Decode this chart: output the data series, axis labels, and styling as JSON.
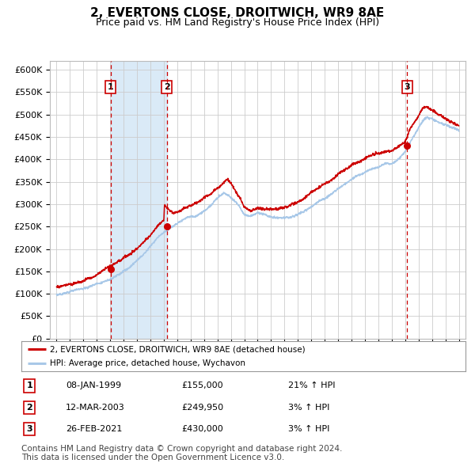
{
  "title": "2, EVERTONS CLOSE, DROITWICH, WR9 8AE",
  "subtitle": "Price paid vs. HM Land Registry's House Price Index (HPI)",
  "title_fontsize": 11,
  "subtitle_fontsize": 9,
  "ylim": [
    0,
    620000
  ],
  "yticks": [
    0,
    50000,
    100000,
    150000,
    200000,
    250000,
    300000,
    350000,
    400000,
    450000,
    500000,
    550000,
    600000
  ],
  "ytick_labels": [
    "£0",
    "£50K",
    "£100K",
    "£150K",
    "£200K",
    "£250K",
    "£300K",
    "£350K",
    "£400K",
    "£450K",
    "£500K",
    "£550K",
    "£600K"
  ],
  "xlim_start": 1994.5,
  "xlim_end": 2025.5,
  "xtick_years": [
    1995,
    1996,
    1997,
    1998,
    1999,
    2000,
    2001,
    2002,
    2003,
    2004,
    2005,
    2006,
    2007,
    2008,
    2009,
    2010,
    2011,
    2012,
    2013,
    2014,
    2015,
    2016,
    2017,
    2018,
    2019,
    2020,
    2021,
    2022,
    2023,
    2024,
    2025
  ],
  "hpi_color": "#a8c8e8",
  "price_color": "#cc0000",
  "sale_marker_color": "#cc0000",
  "grid_color": "#cccccc",
  "background_color": "#ffffff",
  "shade_color": "#daeaf7",
  "vline_color": "#cc0000",
  "sale_dates_decimal": [
    1999.03,
    2003.21,
    2021.15
  ],
  "sale_prices": [
    155000,
    249950,
    430000
  ],
  "sale_labels": [
    "1",
    "2",
    "3"
  ],
  "shade_ranges": [
    [
      1999.03,
      2003.21
    ]
  ],
  "legend_line1": "2, EVERTONS CLOSE, DROITWICH, WR9 8AE (detached house)",
  "legend_line2": "HPI: Average price, detached house, Wychavon",
  "table_rows": [
    [
      "1",
      "08-JAN-1999",
      "£155,000",
      "21% ↑ HPI"
    ],
    [
      "2",
      "12-MAR-2003",
      "£249,950",
      "3% ↑ HPI"
    ],
    [
      "3",
      "26-FEB-2021",
      "£430,000",
      "3% ↑ HPI"
    ]
  ],
  "footnote": "Contains HM Land Registry data © Crown copyright and database right 2024.\nThis data is licensed under the Open Government Licence v3.0.",
  "footnote_fontsize": 7.5
}
